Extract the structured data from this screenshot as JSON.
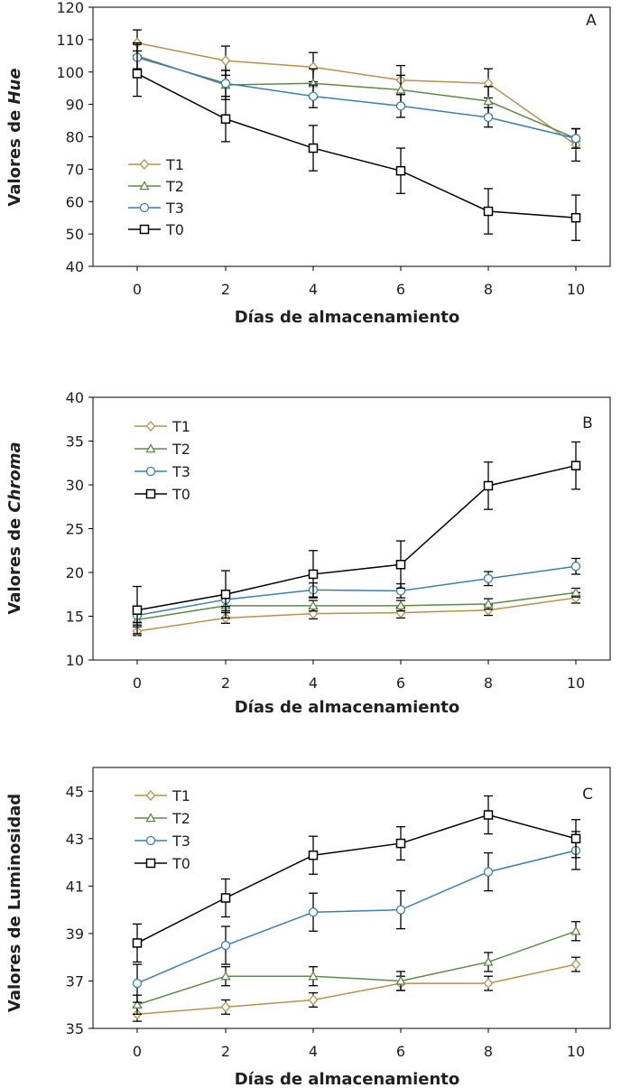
{
  "chart_data": [
    {
      "type": "line",
      "panel": "A",
      "ylabel_prefix": "Valores de ",
      "ylabel_italic": "Hue",
      "xlabel": "Días de almacenamiento",
      "x": [
        0,
        2,
        4,
        6,
        8,
        10
      ],
      "xticks": [
        "0",
        "2",
        "4",
        "6",
        "8",
        "10"
      ],
      "ylim": [
        40,
        120
      ],
      "yticks": [
        "40",
        "50",
        "60",
        "70",
        "80",
        "90",
        "100",
        "110",
        "120"
      ],
      "legend_position": "middle-left",
      "series": [
        {
          "name": "T1",
          "marker": "diamond",
          "color": "#b8914a",
          "values": [
            109,
            103.5,
            101.5,
            97.5,
            96.5,
            77.5
          ],
          "errors": [
            4,
            4.5,
            4.5,
            4.5,
            4.5,
            5
          ]
        },
        {
          "name": "T2",
          "marker": "triangle",
          "color": "#5e8a48",
          "values": [
            105,
            96,
            96.5,
            94.5,
            91,
            79.5
          ],
          "errors": [
            4,
            4.5,
            4.5,
            4.5,
            4.5,
            3
          ]
        },
        {
          "name": "T3",
          "marker": "circle",
          "color": "#3a7fb4",
          "values": [
            104.5,
            96.5,
            92.5,
            89.5,
            86,
            79.5
          ],
          "errors": [
            4,
            4,
            3.5,
            3.5,
            3,
            3
          ]
        },
        {
          "name": "T0",
          "marker": "square",
          "color": "#000000",
          "values": [
            99.5,
            85.5,
            76.5,
            69.5,
            57,
            55
          ],
          "errors": [
            7,
            7,
            7,
            7,
            7,
            7
          ]
        }
      ]
    },
    {
      "type": "line",
      "panel": "B",
      "ylabel_prefix": "Valores de ",
      "ylabel_italic": "Chroma",
      "xlabel": "Días de almacenamiento",
      "x": [
        0,
        2,
        4,
        6,
        8,
        10
      ],
      "xticks": [
        "0",
        "2",
        "4",
        "6",
        "8",
        "10"
      ],
      "ylim": [
        10,
        40
      ],
      "yticks": [
        "10",
        "15",
        "20",
        "25",
        "30",
        "35",
        "40"
      ],
      "legend_position": "top-left",
      "series": [
        {
          "name": "T1",
          "marker": "diamond",
          "color": "#b8914a",
          "values": [
            13.3,
            14.8,
            15.3,
            15.4,
            15.7,
            17.1
          ],
          "errors": [
            0.5,
            0.6,
            0.6,
            0.6,
            0.6,
            0.6
          ]
        },
        {
          "name": "T2",
          "marker": "triangle",
          "color": "#5e8a48",
          "values": [
            14.6,
            16.2,
            16.2,
            16.2,
            16.4,
            17.7
          ],
          "errors": [
            0.6,
            0.6,
            0.6,
            0.6,
            0.6,
            0.5
          ]
        },
        {
          "name": "T3",
          "marker": "circle",
          "color": "#3a7fb4",
          "values": [
            15.1,
            16.9,
            18.0,
            17.9,
            19.3,
            20.7
          ],
          "errors": [
            0.8,
            0.8,
            0.8,
            0.8,
            0.8,
            0.9
          ]
        },
        {
          "name": "T0",
          "marker": "square",
          "color": "#000000",
          "values": [
            15.7,
            17.5,
            19.8,
            20.9,
            29.9,
            32.2
          ],
          "errors": [
            2.7,
            2.7,
            2.7,
            2.7,
            2.7,
            2.7
          ]
        }
      ]
    },
    {
      "type": "line",
      "panel": "C",
      "ylabel_prefix": "Valores de Luminosidad",
      "ylabel_italic": "",
      "xlabel": "Días de almacenamiento",
      "x": [
        0,
        2,
        4,
        6,
        8,
        10
      ],
      "xticks": [
        "0",
        "2",
        "4",
        "6",
        "8",
        "10"
      ],
      "ylim": [
        35,
        46
      ],
      "yticks": [
        "35",
        "37",
        "39",
        "41",
        "43",
        "45"
      ],
      "legend_position": "top-left",
      "series": [
        {
          "name": "T1",
          "marker": "diamond",
          "color": "#b8914a",
          "values": [
            35.6,
            35.9,
            36.2,
            36.9,
            36.9,
            37.7
          ],
          "errors": [
            0.3,
            0.3,
            0.3,
            0.3,
            0.3,
            0.3
          ]
        },
        {
          "name": "T2",
          "marker": "triangle",
          "color": "#5e8a48",
          "values": [
            36.0,
            37.2,
            37.2,
            37.0,
            37.8,
            39.1
          ],
          "errors": [
            0.4,
            0.4,
            0.4,
            0.4,
            0.4,
            0.4
          ]
        },
        {
          "name": "T3",
          "marker": "circle",
          "color": "#3a7fb4",
          "values": [
            36.9,
            38.5,
            39.9,
            40.0,
            41.6,
            42.5
          ],
          "errors": [
            0.8,
            0.8,
            0.8,
            0.8,
            0.8,
            0.8
          ]
        },
        {
          "name": "T0",
          "marker": "square",
          "color": "#000000",
          "values": [
            38.6,
            40.5,
            42.3,
            42.8,
            44.0,
            43.0
          ],
          "errors": [
            0.8,
            0.8,
            0.8,
            0.7,
            0.8,
            0.8
          ]
        }
      ]
    }
  ]
}
